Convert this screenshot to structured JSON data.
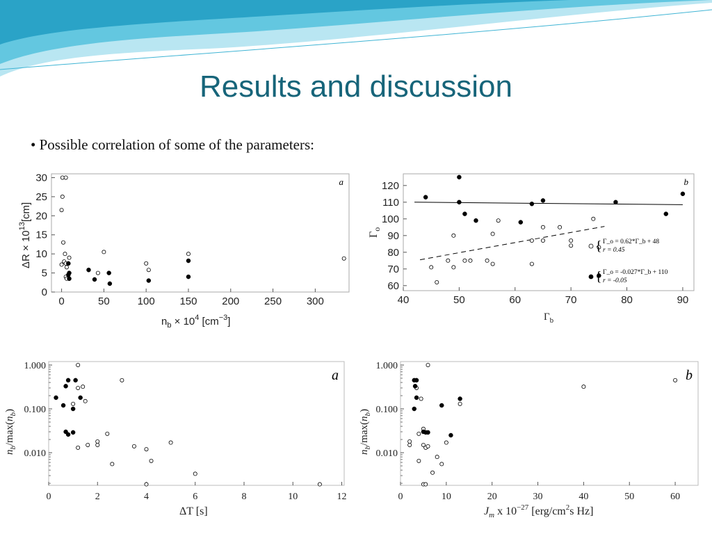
{
  "slide": {
    "title": "Results and discussion",
    "bullet": "• Possible correlation of some of the parameters:",
    "colors": {
      "title": "#17657a",
      "wave_light": "#b9e6f2",
      "wave_mid": "#63c7e0",
      "wave_dark": "#2aa3c7"
    }
  },
  "chart_data": [
    {
      "id": "top-left",
      "type": "scatter",
      "panel_label": "a",
      "xlabel": "n_b × 10^4 [cm^-3]",
      "ylabel": "ΔR × 10^13[cm]",
      "xlim": [
        -12,
        340
      ],
      "ylim": [
        0,
        31
      ],
      "xticks": [
        0,
        50,
        100,
        150,
        200,
        250,
        300
      ],
      "yticks": [
        0,
        5,
        10,
        15,
        20,
        25,
        30
      ],
      "series": [
        {
          "marker": "open",
          "points": [
            [
              1,
              30
            ],
            [
              5,
              30
            ],
            [
              1,
              25
            ],
            [
              0,
              21.5
            ],
            [
              2,
              13
            ],
            [
              4,
              10
            ],
            [
              3,
              8
            ],
            [
              5,
              7.5
            ],
            [
              8,
              7.5
            ],
            [
              0,
              7.2
            ],
            [
              6,
              6.5
            ],
            [
              9,
              9
            ],
            [
              5,
              4
            ],
            [
              6,
              3.5
            ],
            [
              43,
              5
            ],
            [
              50,
              10.5
            ],
            [
              100,
              7.5
            ],
            [
              103,
              5.8
            ],
            [
              150,
              10
            ],
            [
              334,
              8.8
            ]
          ]
        },
        {
          "marker": "filled",
          "points": [
            [
              8,
              7.5
            ],
            [
              9,
              5
            ],
            [
              8,
              4.5
            ],
            [
              9,
              3.5
            ],
            [
              32,
              5.8
            ],
            [
              39,
              3.3
            ],
            [
              56,
              5
            ],
            [
              57,
              2.2
            ],
            [
              103,
              3
            ],
            [
              150,
              8.2
            ],
            [
              150,
              4
            ]
          ]
        }
      ]
    },
    {
      "id": "top-right",
      "type": "scatter",
      "panel_label": "b",
      "xlabel": "Γb",
      "ylabel": "Γo",
      "xlim": [
        40,
        92
      ],
      "ylim": [
        57,
        127
      ],
      "xticks": [
        40,
        50,
        60,
        70,
        80,
        90
      ],
      "yticks": [
        60,
        70,
        80,
        90,
        100,
        110,
        120
      ],
      "series": [
        {
          "marker": "open",
          "points": [
            [
              45,
              71
            ],
            [
              46,
              62
            ],
            [
              48,
              75
            ],
            [
              49,
              71
            ],
            [
              49,
              90
            ],
            [
              50,
              110
            ],
            [
              51,
              75
            ],
            [
              52,
              75
            ],
            [
              55,
              75
            ],
            [
              56,
              91
            ],
            [
              56,
              73
            ],
            [
              57,
              99
            ],
            [
              63,
              87
            ],
            [
              63,
              73
            ],
            [
              65,
              87
            ],
            [
              65,
              95
            ],
            [
              68,
              95
            ],
            [
              70,
              84
            ],
            [
              70,
              87
            ],
            [
              74,
              100
            ],
            [
              75,
              83
            ]
          ]
        },
        {
          "marker": "filled",
          "points": [
            [
              44,
              113
            ],
            [
              50,
              125
            ],
            [
              50,
              110
            ],
            [
              51,
              103
            ],
            [
              53,
              99
            ],
            [
              61,
              98
            ],
            [
              63,
              109
            ],
            [
              65,
              111
            ],
            [
              78,
              110
            ],
            [
              87,
              103
            ],
            [
              90,
              115
            ],
            [
              75,
              66
            ]
          ]
        }
      ],
      "fits": [
        {
          "style": "dashed",
          "x": [
            43,
            76
          ],
          "y": [
            75.5,
            95.5
          ]
        },
        {
          "style": "solid",
          "x": [
            42,
            90
          ],
          "y": [
            110,
            108.5
          ]
        }
      ],
      "legend": [
        {
          "marker": "open",
          "line1": "Γ_o = 0.62*Γ_b + 48",
          "line2": "r = 0.45"
        },
        {
          "marker": "filled",
          "line1": "Γ_o = -0.027*Γ_b + 110",
          "line2": "r = -0.05"
        }
      ]
    },
    {
      "id": "bottom-left",
      "type": "scatter",
      "panel_label": "a",
      "log_y": true,
      "xlabel": "ΔT [s]",
      "ylabel": "n_b/max(n_b)",
      "xlim": [
        0,
        12.1
      ],
      "ylim": [
        0.0018,
        1.2
      ],
      "xticks": [
        0,
        2,
        4,
        6,
        8,
        10,
        12
      ],
      "ytick_labels": [
        "1.000",
        "0.100",
        "0.010"
      ],
      "series": [
        {
          "marker": "open",
          "points": [
            [
              1.2,
              1.0
            ],
            [
              1.2,
              0.3
            ],
            [
              1.4,
              0.32
            ],
            [
              1.5,
              0.15
            ],
            [
              1.0,
              0.13
            ],
            [
              3.0,
              0.45
            ],
            [
              1.2,
              0.013
            ],
            [
              1.6,
              0.015
            ],
            [
              2.0,
              0.018
            ],
            [
              2.0,
              0.015
            ],
            [
              2.4,
              0.027
            ],
            [
              2.6,
              0.0055
            ],
            [
              3.5,
              0.014
            ],
            [
              4.0,
              0.012
            ],
            [
              4.2,
              0.0065
            ],
            [
              4.0,
              0.0019
            ],
            [
              5.0,
              0.017
            ],
            [
              6.0,
              0.0033
            ],
            [
              11.1,
              0.0019
            ]
          ]
        },
        {
          "marker": "filled",
          "points": [
            [
              0.3,
              0.18
            ],
            [
              0.6,
              0.12
            ],
            [
              0.7,
              0.33
            ],
            [
              0.8,
              0.45
            ],
            [
              1.1,
              0.45
            ],
            [
              1.3,
              0.18
            ],
            [
              1.0,
              0.1
            ],
            [
              0.7,
              0.03
            ],
            [
              0.8,
              0.026
            ],
            [
              1.0,
              0.029
            ]
          ]
        }
      ]
    },
    {
      "id": "bottom-right",
      "type": "scatter",
      "panel_label": "b",
      "log_y": true,
      "xlabel": "J_m x 10^-27 [erg/cm^2s Hz]",
      "ylabel": "n_b/max(n_b)",
      "xlim": [
        0,
        65
      ],
      "ylim": [
        0.0018,
        1.2
      ],
      "xticks": [
        0,
        10,
        20,
        30,
        40,
        50,
        60
      ],
      "ytick_labels": [
        "1.000",
        "0.100",
        "0.010"
      ],
      "series": [
        {
          "marker": "open",
          "points": [
            [
              6,
              1.0
            ],
            [
              3.5,
              0.3
            ],
            [
              4.5,
              0.17
            ],
            [
              2,
              0.018
            ],
            [
              2,
              0.015
            ],
            [
              4,
              0.027
            ],
            [
              5,
              0.035
            ],
            [
              4,
              0.0065
            ],
            [
              5,
              0.015
            ],
            [
              5.5,
              0.013
            ],
            [
              6,
              0.014
            ],
            [
              7,
              0.0035
            ],
            [
              8,
              0.008
            ],
            [
              9,
              0.0055
            ],
            [
              10,
              0.017
            ],
            [
              13,
              0.13
            ],
            [
              40,
              0.32
            ],
            [
              60,
              0.45
            ],
            [
              5,
              0.0019
            ],
            [
              5.5,
              0.0019
            ]
          ]
        },
        {
          "marker": "filled",
          "points": [
            [
              3,
              0.45
            ],
            [
              3.5,
              0.45
            ],
            [
              3.2,
              0.33
            ],
            [
              3.5,
              0.18
            ],
            [
              3,
              0.1
            ],
            [
              5,
              0.03
            ],
            [
              5.5,
              0.029
            ],
            [
              6,
              0.029
            ],
            [
              9,
              0.12
            ],
            [
              11,
              0.025
            ],
            [
              13,
              0.17
            ]
          ]
        }
      ]
    }
  ]
}
